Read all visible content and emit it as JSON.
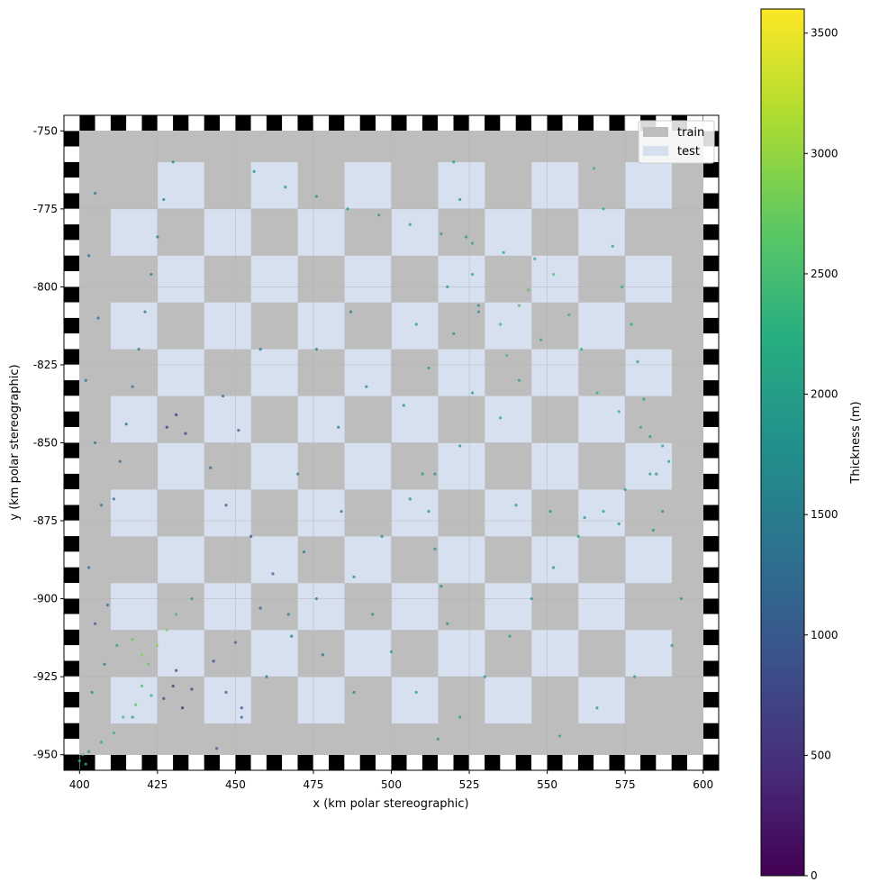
{
  "chart_data": {
    "type": "scatter",
    "xlabel": "x (km polar stereographic)",
    "ylabel": "y (km polar stereographic)",
    "xlim": [
      395,
      605
    ],
    "ylim": [
      -955,
      -745
    ],
    "xticks": [
      400,
      425,
      450,
      475,
      500,
      525,
      550,
      575,
      600
    ],
    "yticks": [
      -750,
      -775,
      -800,
      -825,
      -850,
      -875,
      -900,
      -925,
      -950
    ],
    "grid": true,
    "legend": {
      "position": "top-right",
      "entries": [
        {
          "label": "train",
          "color": "#bdbdbd"
        },
        {
          "label": "test",
          "color": "#d6e0ee"
        }
      ]
    },
    "colorbar": {
      "label": "Thickness (m)",
      "colormap": "viridis",
      "range": [
        0,
        3600
      ],
      "ticks": [
        0,
        500,
        1000,
        1500,
        2000,
        2500,
        3000,
        3500
      ]
    },
    "checkerboard": {
      "extent": [
        400,
        600,
        -950,
        -750
      ],
      "block_size_km": 15,
      "test_blocks": [
        [
          425,
          -775,
          440,
          -760
        ],
        [
          455,
          -775,
          470,
          -760
        ],
        [
          485,
          -775,
          500,
          -760
        ],
        [
          515,
          -775,
          530,
          -760
        ],
        [
          545,
          -775,
          560,
          -760
        ],
        [
          575,
          -775,
          590,
          -760
        ],
        [
          410,
          -790,
          425,
          -775
        ],
        [
          440,
          -790,
          455,
          -775
        ],
        [
          470,
          -790,
          485,
          -775
        ],
        [
          500,
          -790,
          515,
          -775
        ],
        [
          530,
          -790,
          545,
          -775
        ],
        [
          560,
          -790,
          575,
          -775
        ],
        [
          425,
          -805,
          440,
          -790
        ],
        [
          455,
          -805,
          470,
          -790
        ],
        [
          485,
          -805,
          500,
          -790
        ],
        [
          515,
          -805,
          530,
          -790
        ],
        [
          545,
          -805,
          560,
          -790
        ],
        [
          575,
          -805,
          590,
          -790
        ],
        [
          410,
          -820,
          425,
          -805
        ],
        [
          440,
          -820,
          455,
          -805
        ],
        [
          470,
          -820,
          485,
          -805
        ],
        [
          500,
          -820,
          515,
          -805
        ],
        [
          530,
          -820,
          545,
          -805
        ],
        [
          560,
          -820,
          575,
          -805
        ],
        [
          425,
          -835,
          440,
          -820
        ],
        [
          455,
          -835,
          470,
          -820
        ],
        [
          485,
          -835,
          500,
          -820
        ],
        [
          515,
          -835,
          530,
          -820
        ],
        [
          545,
          -835,
          560,
          -820
        ],
        [
          575,
          -835,
          590,
          -820
        ],
        [
          410,
          -850,
          425,
          -835
        ],
        [
          440,
          -850,
          455,
          -835
        ],
        [
          470,
          -850,
          485,
          -835
        ],
        [
          500,
          -850,
          515,
          -835
        ],
        [
          530,
          -850,
          545,
          -835
        ],
        [
          560,
          -850,
          575,
          -835
        ],
        [
          425,
          -865,
          440,
          -850
        ],
        [
          455,
          -865,
          470,
          -850
        ],
        [
          485,
          -865,
          500,
          -850
        ],
        [
          515,
          -865,
          530,
          -850
        ],
        [
          545,
          -865,
          560,
          -850
        ],
        [
          575,
          -865,
          590,
          -850
        ],
        [
          410,
          -880,
          425,
          -865
        ],
        [
          440,
          -880,
          455,
          -865
        ],
        [
          470,
          -880,
          485,
          -865
        ],
        [
          500,
          -880,
          515,
          -865
        ],
        [
          530,
          -880,
          545,
          -865
        ],
        [
          560,
          -880,
          575,
          -865
        ],
        [
          425,
          -895,
          440,
          -880
        ],
        [
          455,
          -895,
          470,
          -880
        ],
        [
          485,
          -895,
          500,
          -880
        ],
        [
          515,
          -895,
          530,
          -880
        ],
        [
          545,
          -895,
          560,
          -880
        ],
        [
          575,
          -895,
          590,
          -880
        ],
        [
          410,
          -910,
          425,
          -895
        ],
        [
          440,
          -910,
          455,
          -895
        ],
        [
          470,
          -910,
          485,
          -895
        ],
        [
          500,
          -910,
          515,
          -895
        ],
        [
          530,
          -910,
          545,
          -895
        ],
        [
          560,
          -910,
          575,
          -895
        ],
        [
          425,
          -925,
          440,
          -910
        ],
        [
          455,
          -925,
          470,
          -910
        ],
        [
          485,
          -925,
          500,
          -910
        ],
        [
          515,
          -925,
          530,
          -910
        ],
        [
          545,
          -925,
          560,
          -910
        ],
        [
          575,
          -925,
          590,
          -910
        ],
        [
          410,
          -940,
          425,
          -925
        ],
        [
          440,
          -940,
          455,
          -925
        ],
        [
          470,
          -940,
          485,
          -925
        ],
        [
          500,
          -940,
          515,
          -925
        ],
        [
          530,
          -940,
          545,
          -925
        ],
        [
          560,
          -940,
          575,
          -925
        ]
      ]
    },
    "series": [
      {
        "points": [
          [
            403,
            -949,
            1800
          ],
          [
            407,
            -946,
            2200
          ],
          [
            411,
            -943,
            2300
          ],
          [
            414,
            -938,
            2400
          ],
          [
            418,
            -934,
            2600
          ],
          [
            420,
            -928,
            2500
          ],
          [
            422,
            -921,
            2700
          ],
          [
            425,
            -915,
            3000
          ],
          [
            428,
            -910,
            2800
          ],
          [
            431,
            -905,
            2400
          ],
          [
            436,
            -900,
            2000
          ],
          [
            417,
            -938,
            2000
          ],
          [
            423,
            -931,
            2200
          ],
          [
            420,
            -918,
            2900
          ],
          [
            417,
            -913,
            2700
          ],
          [
            404,
            -930,
            1700
          ],
          [
            408,
            -921,
            1500
          ],
          [
            412,
            -915,
            2100
          ],
          [
            405,
            -908,
            900
          ],
          [
            409,
            -902,
            1200
          ],
          [
            427,
            -932,
            600
          ],
          [
            430,
            -928,
            500
          ],
          [
            433,
            -935,
            400
          ],
          [
            436,
            -929,
            600
          ],
          [
            431,
            -923,
            700
          ],
          [
            428,
            -845,
            500
          ],
          [
            431,
            -841,
            400
          ],
          [
            434,
            -847,
            600
          ],
          [
            447,
            -930,
            900
          ],
          [
            452,
            -935,
            850
          ],
          [
            443,
            -920,
            800
          ],
          [
            450,
            -914,
            1000
          ],
          [
            458,
            -903,
            1100
          ],
          [
            462,
            -892,
            1050
          ],
          [
            455,
            -880,
            900
          ],
          [
            447,
            -870,
            1000
          ],
          [
            442,
            -858,
            1100
          ],
          [
            451,
            -846,
            1150
          ],
          [
            446,
            -835,
            1200
          ],
          [
            458,
            -820,
            1300
          ],
          [
            467,
            -905,
            1400
          ],
          [
            478,
            -918,
            1300
          ],
          [
            488,
            -930,
            1500
          ],
          [
            472,
            -885,
            1400
          ],
          [
            484,
            -872,
            1500
          ],
          [
            470,
            -860,
            1350
          ],
          [
            483,
            -845,
            1450
          ],
          [
            492,
            -832,
            1550
          ],
          [
            476,
            -820,
            1500
          ],
          [
            487,
            -808,
            1450
          ],
          [
            497,
            -880,
            1700
          ],
          [
            506,
            -868,
            1750
          ],
          [
            514,
            -860,
            1800
          ],
          [
            522,
            -851,
            1850
          ],
          [
            504,
            -838,
            1800
          ],
          [
            512,
            -826,
            1900
          ],
          [
            520,
            -815,
            1850
          ],
          [
            528,
            -806,
            1950
          ],
          [
            508,
            -812,
            1900
          ],
          [
            518,
            -800,
            1850
          ],
          [
            526,
            -834,
            2000
          ],
          [
            535,
            -842,
            2050
          ],
          [
            541,
            -830,
            2100
          ],
          [
            548,
            -817,
            2200
          ],
          [
            535,
            -812,
            2400
          ],
          [
            541,
            -806,
            2500
          ],
          [
            544,
            -801,
            2600
          ],
          [
            537,
            -822,
            2450
          ],
          [
            552,
            -796,
            2550
          ],
          [
            557,
            -809,
            2300
          ],
          [
            561,
            -820,
            2250
          ],
          [
            566,
            -834,
            2300
          ],
          [
            573,
            -840,
            2250
          ],
          [
            580,
            -845,
            2200
          ],
          [
            587,
            -851,
            2150
          ],
          [
            589,
            -856,
            2100
          ],
          [
            583,
            -860,
            2050
          ],
          [
            575,
            -865,
            2000
          ],
          [
            568,
            -872,
            2000
          ],
          [
            560,
            -880,
            1950
          ],
          [
            552,
            -890,
            1900
          ],
          [
            545,
            -900,
            1950
          ],
          [
            538,
            -912,
            1900
          ],
          [
            530,
            -925,
            1950
          ],
          [
            522,
            -938,
            1900
          ],
          [
            515,
            -945,
            1900
          ],
          [
            508,
            -930,
            1850
          ],
          [
            500,
            -917,
            1800
          ],
          [
            494,
            -905,
            1750
          ],
          [
            488,
            -893,
            1700
          ],
          [
            456,
            -763,
            1700
          ],
          [
            466,
            -768,
            1750
          ],
          [
            476,
            -771,
            1800
          ],
          [
            486,
            -775,
            1850
          ],
          [
            496,
            -777,
            1900
          ],
          [
            506,
            -780,
            1950
          ],
          [
            516,
            -783,
            2000
          ],
          [
            526,
            -786,
            2050
          ],
          [
            536,
            -789,
            2100
          ],
          [
            546,
            -791,
            2150
          ],
          [
            430,
            -760,
            1600
          ],
          [
            427,
            -772,
            1550
          ],
          [
            425,
            -784,
            1500
          ],
          [
            423,
            -796,
            1450
          ],
          [
            421,
            -808,
            1400
          ],
          [
            419,
            -820,
            1350
          ],
          [
            417,
            -832,
            1300
          ],
          [
            415,
            -844,
            1250
          ],
          [
            413,
            -856,
            1200
          ],
          [
            411,
            -868,
            1150
          ],
          [
            565,
            -762,
            2300
          ],
          [
            568,
            -775,
            2250
          ],
          [
            571,
            -787,
            2200
          ],
          [
            574,
            -800,
            2150
          ],
          [
            577,
            -812,
            2100
          ],
          [
            579,
            -824,
            2050
          ],
          [
            581,
            -836,
            2000
          ],
          [
            583,
            -848,
            1950
          ],
          [
            585,
            -860,
            1900
          ],
          [
            587,
            -872,
            1850
          ],
          [
            520,
            -760,
            1800
          ],
          [
            522,
            -772,
            1850
          ],
          [
            524,
            -784,
            1900
          ],
          [
            526,
            -796,
            1950
          ],
          [
            528,
            -808,
            2000
          ],
          [
            510,
            -860,
            1950
          ],
          [
            512,
            -872,
            1900
          ],
          [
            514,
            -884,
            1850
          ],
          [
            516,
            -896,
            1800
          ],
          [
            518,
            -908,
            1750
          ],
          [
            476,
            -900,
            1450
          ],
          [
            468,
            -912,
            1350
          ],
          [
            460,
            -925,
            1250
          ],
          [
            452,
            -938,
            1150
          ],
          [
            444,
            -948,
            1050
          ],
          [
            590,
            -915,
            1900
          ],
          [
            578,
            -925,
            1950
          ],
          [
            566,
            -935,
            1950
          ],
          [
            554,
            -944,
            2000
          ],
          [
            593,
            -900,
            1900
          ],
          [
            540,
            -870,
            2000
          ],
          [
            551,
            -872,
            1950
          ],
          [
            562,
            -874,
            1900
          ],
          [
            573,
            -876,
            1850
          ],
          [
            584,
            -878,
            1800
          ],
          [
            405,
            -770,
            1400
          ],
          [
            403,
            -790,
            1300
          ],
          [
            406,
            -810,
            1350
          ],
          [
            402,
            -830,
            1250
          ],
          [
            405,
            -850,
            1300
          ],
          [
            407,
            -870,
            1250
          ],
          [
            403,
            -890,
            1200
          ],
          [
            400,
            -952,
            2300
          ],
          [
            402,
            -953,
            2400
          ],
          [
            401,
            -950,
            2500
          ]
        ]
      }
    ]
  }
}
